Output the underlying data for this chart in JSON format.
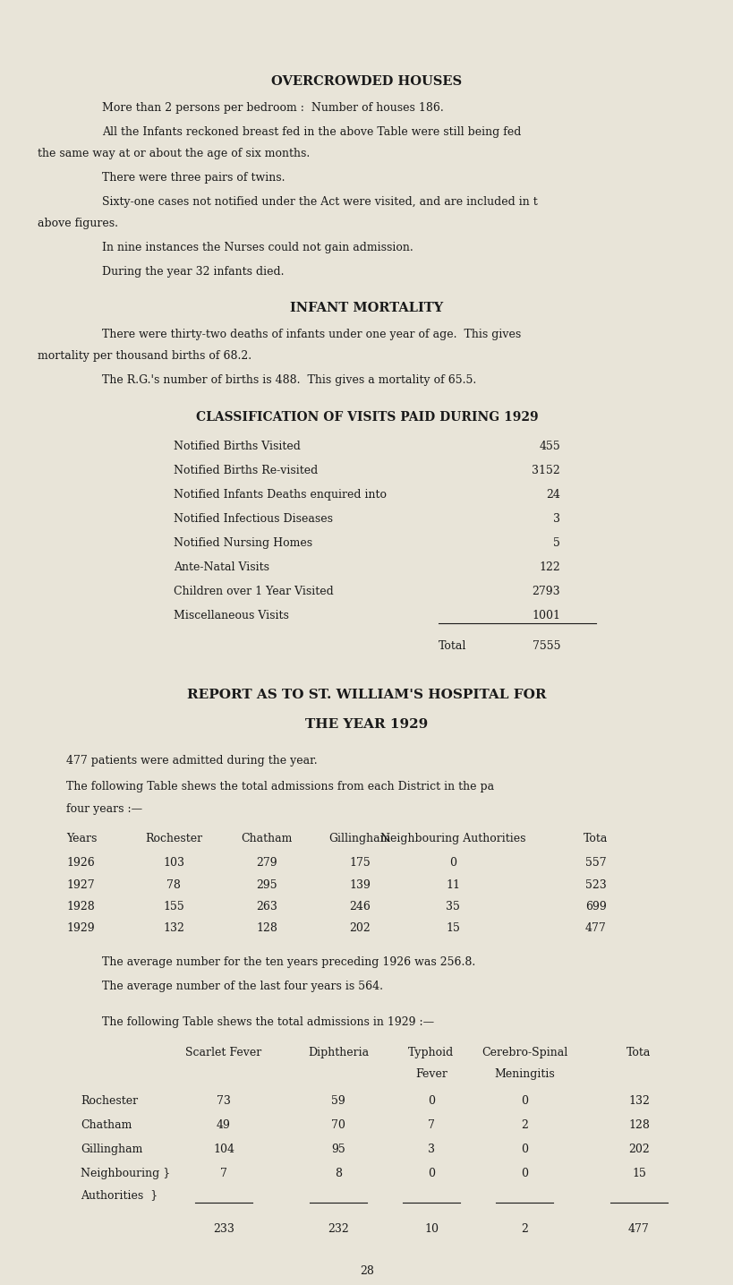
{
  "bg_color": "#e8e4d8",
  "text_color": "#1a1a1a",
  "page_width": 8.0,
  "page_height": 14.05,
  "section1_title": "OVERCROWDED HOUSES",
  "section1_lines": [
    "More than 2 persons per bedroom :  Number of houses 186.",
    "All the Infants reckoned breast fed in the above Table were still being fed",
    "the same way at or about the age of six months.",
    "There were three pairs of twins.",
    "Sixty-one cases not notified under the Act were visited, and are included in t",
    "above figures.",
    "In nine instances the Nurses could not gain admission.",
    "During the year 32 infants died."
  ],
  "section2_title": "INFANT MORTALITY",
  "section2_lines": [
    "There were thirty-two deaths of infants under one year of age.  This gives",
    "mortality per thousand births of 68.2.",
    "The R.G.'s number of births is 488.  This gives a mortality of 65.5."
  ],
  "section3_title": "CLASSIFICATION OF VISITS PAID DURING 1929",
  "visits_labels": [
    "Notified Births Visited",
    "Notified Births Re-visited",
    "Notified Infants Deaths enquired into",
    "Notified Infectious Diseases",
    "Notified Nursing Homes",
    "Ante-Natal Visits",
    "Children over 1 Year Visited",
    "Miscellaneous Visits"
  ],
  "visits_values": [
    "455",
    "3152",
    "24",
    "3",
    "5",
    "122",
    "2793",
    "1001"
  ],
  "visits_total_label": "Total",
  "visits_total_value": "7555",
  "section4_title1": "REPORT AS TO ST. WILLIAM'S HOSPITAL FOR",
  "section4_title2": "THE YEAR 1929",
  "section4_intro": "477 patients were admitted during the year.",
  "section4_table_intro": "The following Table shews the total admissions from each District in the pa",
  "section4_table_intro2": "four years :—",
  "table1_headers": [
    "Years",
    "Rochester",
    "Chatham",
    "Gillingham",
    "Neighbouring Authorities",
    "Tota"
  ],
  "table1_rows": [
    [
      "1926",
      "103",
      "279",
      "175",
      "0",
      "557"
    ],
    [
      "1927",
      "78",
      "295",
      "139",
      "11",
      "523"
    ],
    [
      "1928",
      "155",
      "263",
      "246",
      "35",
      "699"
    ],
    [
      "1929",
      "132",
      "128",
      "202",
      "15",
      "477"
    ]
  ],
  "avg_lines": [
    "The average number for the ten years preceding 1926 was 256.8.",
    "The average number of the last four years is 564."
  ],
  "table2_intro": "The following Table shews the total admissions in 1929 :—",
  "table2_col_headers_line1": [
    "",
    "Scarlet Fever",
    "Diphtheria",
    "Typhoid",
    "Cerebro-Spinal",
    "Tota"
  ],
  "table2_col_headers_line2": [
    "",
    "",
    "",
    "Fever",
    "Meningitis",
    ""
  ],
  "table2_rows": [
    [
      "Rochester",
      "73",
      "59",
      "0",
      "0",
      "132"
    ],
    [
      "Chatham",
      "49",
      "70",
      "7",
      "2",
      "128"
    ],
    [
      "Gillingham",
      "104",
      "95",
      "3",
      "0",
      "202"
    ],
    [
      "Neighbouring }",
      "7",
      "8",
      "0",
      "0",
      "15"
    ],
    [
      "Authorities  }",
      "",
      "",
      "",
      "",
      ""
    ]
  ],
  "table2_totals": [
    "",
    "233",
    "232",
    "10",
    "2",
    "477"
  ],
  "page_number": "28"
}
